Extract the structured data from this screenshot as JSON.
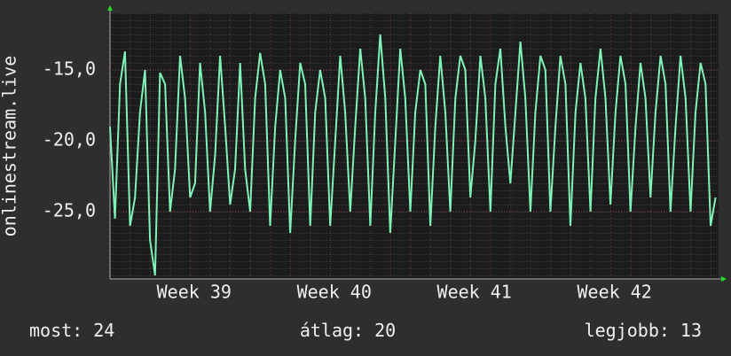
{
  "chart_data": {
    "type": "line",
    "y_label": "onlinestream.live",
    "x": [
      0,
      0.25,
      0.5,
      0.75,
      1,
      1.25,
      1.5,
      1.75,
      2,
      2.25,
      2.5,
      2.75,
      3,
      3.25,
      3.5,
      3.75,
      4,
      4.25,
      4.5,
      4.75,
      5,
      5.25,
      5.5,
      5.75,
      6,
      6.25,
      6.5,
      6.75,
      7,
      7.25,
      7.5,
      7.75,
      8,
      8.25,
      8.5,
      8.75,
      9,
      9.25,
      9.5,
      9.75,
      10,
      10.25,
      10.5,
      10.75,
      11,
      11.25,
      11.5,
      11.75,
      12,
      12.25,
      12.5,
      12.75,
      13,
      13.25,
      13.5,
      13.75,
      14,
      14.25,
      14.5,
      14.75,
      15,
      15.25,
      15.5,
      15.75,
      16,
      16.25,
      16.5,
      16.75,
      17,
      17.25,
      17.5,
      17.75,
      18,
      18.25,
      18.5,
      18.75,
      19,
      19.25,
      19.5,
      19.75,
      20,
      20.25,
      20.5,
      20.75,
      21,
      21.25,
      21.5,
      21.75,
      22,
      22.25,
      22.5,
      22.75,
      23,
      23.25,
      23.5,
      23.75,
      24,
      24.25,
      24.5,
      24.75,
      25,
      25.25,
      25.5,
      25.75,
      26,
      26.25,
      26.5,
      26.75,
      27,
      27.25,
      27.5,
      27.75,
      28,
      28.25,
      28.5,
      28.75,
      29,
      29.25,
      29.5,
      29.75,
      30,
      30.25
    ],
    "series": [
      {
        "name": "onlinestream.live",
        "color": "#7ff2b8",
        "values": [
          -19,
          -25.5,
          -16,
          -13.7,
          -26,
          -24,
          -18,
          -15,
          -27,
          -29.5,
          -15.2,
          -16,
          -25,
          -22,
          -14,
          -17,
          -24,
          -23,
          -14.5,
          -18,
          -25,
          -21,
          -14,
          -19,
          -24.5,
          -22,
          -14.5,
          -22,
          -25,
          -17,
          -13.8,
          -16,
          -26,
          -19,
          -15,
          -17,
          -26.5,
          -20,
          -14.5,
          -16,
          -26,
          -18,
          -15,
          -17,
          -26,
          -20,
          -14,
          -18,
          -25,
          -19,
          -13.5,
          -17,
          -26,
          -18,
          -12.5,
          -17,
          -26.5,
          -20,
          -13.5,
          -17,
          -25,
          -18,
          -15,
          -16,
          -26,
          -19,
          -14,
          -18,
          -25,
          -17,
          -14,
          -15,
          -24,
          -20,
          -14,
          -17,
          -25,
          -16,
          -13.5,
          -19,
          -23,
          -18,
          -13,
          -17,
          -25,
          -18,
          -14,
          -15,
          -25,
          -19,
          -14,
          -16,
          -26,
          -18,
          -14.5,
          -17,
          -25,
          -17,
          -13.5,
          -17,
          -24.5,
          -18,
          -14,
          -16,
          -25,
          -19,
          -14.5,
          -17,
          -24,
          -18,
          -14,
          -16,
          -25,
          -19,
          -14,
          -17,
          -25,
          -18,
          -14.5,
          -16,
          -26,
          -24
        ]
      }
    ],
    "xlim": [
      0,
      30.4
    ],
    "xticks": [
      {
        "value": 4.2,
        "label": "Week 39"
      },
      {
        "value": 11.2,
        "label": "Week 40"
      },
      {
        "value": 18.2,
        "label": "Week 41"
      },
      {
        "value": 25.2,
        "label": "Week 42"
      }
    ],
    "ylim": [
      -29.75,
      -11
    ],
    "yticks": [
      {
        "value": -25,
        "label": "-25,0"
      },
      {
        "value": -20,
        "label": "-20,0"
      },
      {
        "value": -15,
        "label": "-15,0"
      }
    ],
    "grid": true,
    "footer": [
      {
        "label": "most:",
        "value": 24
      },
      {
        "label": "átlag:",
        "value": 20
      },
      {
        "label": "legjobb:",
        "value": 13
      }
    ]
  }
}
